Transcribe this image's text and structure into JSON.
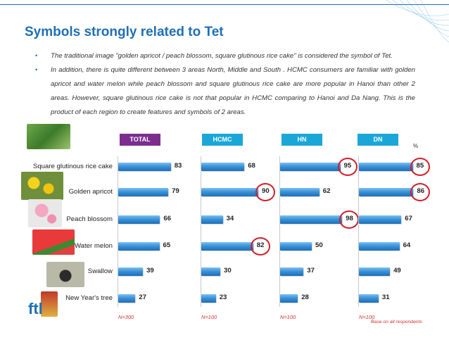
{
  "title": "Symbols strongly related to Tet",
  "bullets": [
    "The traditional image \"golden apricot / peach blossom, square glutinous rice cake\" is considered the symbol of Tet.",
    "In addition, there is quite different between 3 areas North, Middle and South . HCMC consumers are familiar with golden apricot and water melon while peach blossom and square glutinous rice cake are more popular in Hanoi than other 2 areas. However, square glutinous rice cake is not that popular in HCMC comparing to Hanoi and Da Nang. This is the product of each region to create features and symbols of 2 areas."
  ],
  "bullet_mark": "•",
  "unit": "%",
  "base_note": "Base on all respondents",
  "logo_text": "ftl",
  "colors": {
    "total_header": "#7b2e8e",
    "region_header": "#1aa7d8",
    "highlight": "#d0202a",
    "bar": "#2a82cc"
  },
  "chart_data": {
    "type": "bar",
    "orientation": "horizontal",
    "categories": [
      "Square glutinous rice cake",
      "Golden apricot",
      "Peach blossom",
      "Water melon",
      "Swallow",
      "New Year's tree"
    ],
    "series": [
      {
        "name": "TOTAL",
        "values": [
          83,
          79,
          66,
          65,
          39,
          27
        ],
        "n": "N=300",
        "highlighted": []
      },
      {
        "name": "HCMC",
        "values": [
          68,
          90,
          34,
          82,
          30,
          23
        ],
        "n": "N=100",
        "highlighted": [
          1,
          3
        ]
      },
      {
        "name": "HN",
        "values": [
          95,
          62,
          98,
          50,
          37,
          28
        ],
        "n": "N=100",
        "highlighted": [
          0,
          2
        ]
      },
      {
        "name": "DN",
        "values": [
          85,
          86,
          67,
          64,
          49,
          31
        ],
        "n": "N=100",
        "highlighted": [
          0,
          1
        ]
      }
    ],
    "xlim": [
      0,
      100
    ],
    "ylabel": "",
    "xlabel": "",
    "legend": "top"
  },
  "images": [
    "rice-cake-image",
    "apricot-image",
    "peach-blossom-image",
    "watermelon-image",
    "swallow-image",
    "new-year-tree-image"
  ]
}
